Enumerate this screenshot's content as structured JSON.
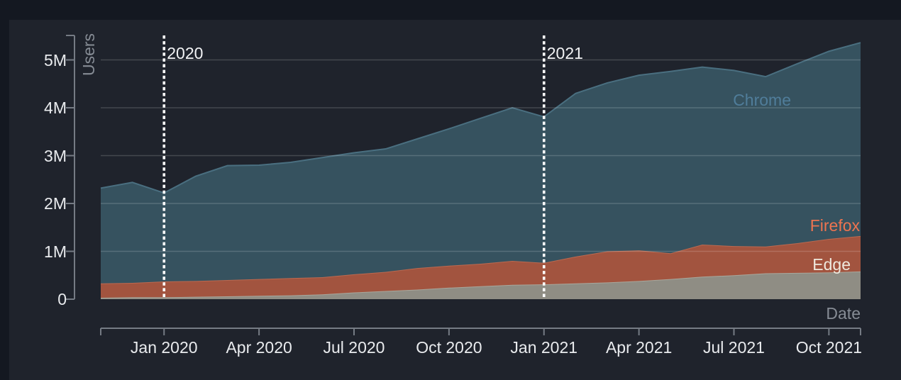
{
  "page": {
    "outer_bg": "#141821",
    "panel_bg": "#1f232c",
    "grid_color": "rgba(255,255,255,0.17)",
    "axis_color": "#757b84",
    "tick_text_color": "#e9ebee",
    "axis_title_color": "#868c95",
    "year_rule_color": "#ffffff",
    "year_text_color": "#f1f2f4"
  },
  "chart_data": {
    "type": "area",
    "stacked": true,
    "title": "",
    "xlabel": "Date",
    "ylabel": "Users",
    "unit": "millions of users",
    "ylim": [
      0,
      5.5
    ],
    "grid": true,
    "legend_position": "inline-right-labels",
    "x": [
      "Nov 2019",
      "Dec 2019",
      "Jan 2020",
      "Feb 2020",
      "Mar 2020",
      "Apr 2020",
      "May 2020",
      "Jun 2020",
      "Jul 2020",
      "Aug 2020",
      "Sep 2020",
      "Oct 2020",
      "Nov 2020",
      "Dec 2020",
      "Jan 2021",
      "Feb 2021",
      "Mar 2021",
      "Apr 2021",
      "May 2021",
      "Jun 2021",
      "Jul 2021",
      "Aug 2021",
      "Sep 2021",
      "Oct 2021",
      "Nov 2021"
    ],
    "series": [
      {
        "name": "Edge",
        "color": "#8f8d84",
        "top_line_color": "#a9a79c",
        "label_color": "#eee9de",
        "values": [
          0.03,
          0.04,
          0.04,
          0.05,
          0.06,
          0.07,
          0.08,
          0.1,
          0.14,
          0.17,
          0.2,
          0.24,
          0.27,
          0.3,
          0.31,
          0.33,
          0.35,
          0.38,
          0.42,
          0.47,
          0.5,
          0.54,
          0.55,
          0.56,
          0.58
        ]
      },
      {
        "name": "Firefox",
        "color": "#a2543f",
        "top_line_color": "#bb6950",
        "label_color": "#ee7450",
        "values": [
          0.3,
          0.3,
          0.33,
          0.33,
          0.34,
          0.35,
          0.36,
          0.36,
          0.38,
          0.4,
          0.45,
          0.46,
          0.47,
          0.5,
          0.45,
          0.56,
          0.65,
          0.64,
          0.54,
          0.67,
          0.61,
          0.56,
          0.62,
          0.7,
          0.74
        ]
      },
      {
        "name": "Chrome",
        "color": "#36525f",
        "top_line_color": "#4a6f80",
        "label_color": "#507d9a",
        "values": [
          1.99,
          2.1,
          1.85,
          2.19,
          2.39,
          2.38,
          2.42,
          2.5,
          2.54,
          2.57,
          2.7,
          2.86,
          3.04,
          3.2,
          3.05,
          3.41,
          3.52,
          3.66,
          3.8,
          3.71,
          3.67,
          3.55,
          3.75,
          3.92,
          4.04
        ]
      }
    ],
    "y_axis": {
      "title": "Users",
      "ticks": [
        {
          "label": "0",
          "value": 0
        },
        {
          "label": "1M",
          "value": 1
        },
        {
          "label": "2M",
          "value": 2
        },
        {
          "label": "3M",
          "value": 3
        },
        {
          "label": "4M",
          "value": 4
        },
        {
          "label": "5M",
          "value": 5
        }
      ]
    },
    "x_axis": {
      "title": "Date",
      "ticks": [
        {
          "label": "Jan 2020",
          "month_index": 2
        },
        {
          "label": "Apr 2020",
          "month_index": 5
        },
        {
          "label": "Jul 2020",
          "month_index": 8
        },
        {
          "label": "Oct 2020",
          "month_index": 11
        },
        {
          "label": "Jan 2021",
          "month_index": 14
        },
        {
          "label": "Apr 2021",
          "month_index": 17
        },
        {
          "label": "Jul 2021",
          "month_index": 20
        },
        {
          "label": "Oct 2021",
          "month_index": 23
        }
      ]
    },
    "year_markers": [
      {
        "label": "2020",
        "month_index": 2
      },
      {
        "label": "2021",
        "month_index": 14
      }
    ]
  }
}
